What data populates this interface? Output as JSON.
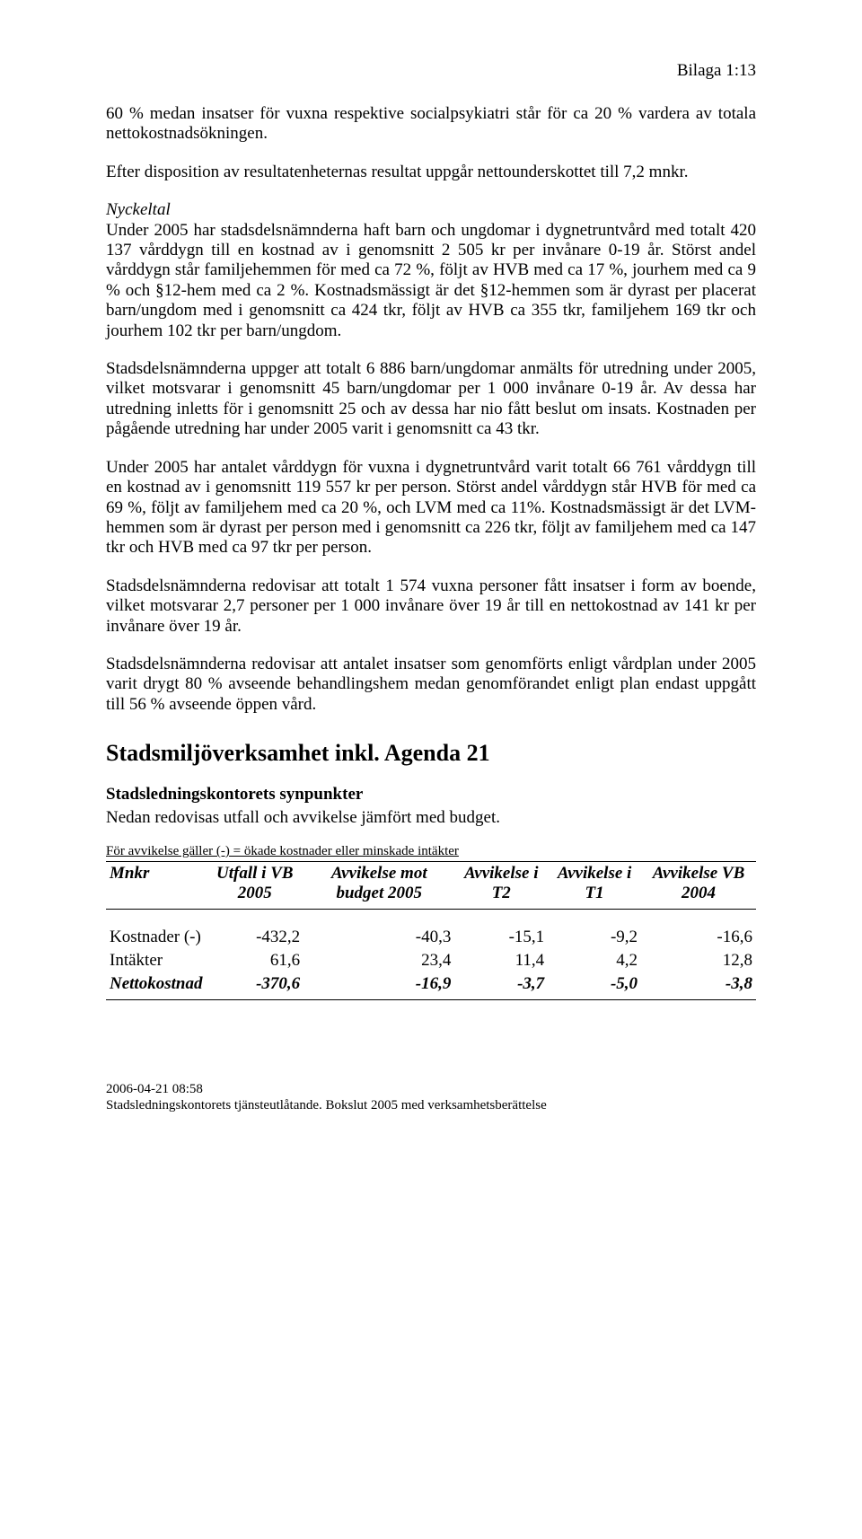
{
  "header": {
    "bilaga": "Bilaga 1:13"
  },
  "paragraphs": {
    "p1": "60 % medan insatser för vuxna respektive socialpsykiatri står för ca 20 % vardera av totala nettokostnadsökningen.",
    "p2": "Efter disposition av resultatenheternas resultat uppgår nettounderskottet till 7,2 mnkr.",
    "p3_label": "Nyckeltal",
    "p3": "Under 2005 har stadsdelsnämnderna haft barn och ungdomar i dygnetruntvård med totalt 420 137 vårddygn till en kostnad av i genomsnitt 2 505 kr per invånare 0-19 år. Störst andel vårddygn står familjehemmen för med ca 72 %, följt av HVB med ca 17 %, jourhem med ca 9 % och §12-hem med ca 2 %. Kostnadsmässigt är det §12-hemmen som är dyrast per placerat barn/ungdom med i genomsnitt ca 424 tkr, följt av HVB ca 355 tkr, familjehem 169 tkr och jourhem 102 tkr per barn/ungdom.",
    "p4": "Stadsdelsnämnderna uppger att totalt 6 886 barn/ungdomar anmälts för utredning under 2005, vilket motsvarar i genomsnitt 45 barn/ungdomar per 1 000 invånare 0-19 år. Av dessa har utredning inletts för i genomsnitt 25 och av dessa har nio fått beslut om insats. Kostnaden per pågående utredning har under 2005 varit i genomsnitt ca 43 tkr.",
    "p5": "Under 2005 har antalet vårddygn för vuxna i dygnetruntvård varit totalt  66 761 vårddygn till en kostnad av i genomsnitt 119 557 kr per person. Störst andel vårddygn står HVB för med ca 69 %, följt av familjehem med ca 20 %, och LVM med ca 11%. Kostnadsmässigt är det LVM-hemmen som är dyrast per person med i genomsnitt ca 226 tkr, följt av familjehem med ca 147 tkr och HVB med ca 97 tkr per person.",
    "p6": "Stadsdelsnämnderna redovisar att totalt 1 574 vuxna personer fått insatser i form av boende, vilket motsvarar 2,7 personer per 1 000 invånare över 19 år till en nettokostnad av 141 kr per invånare över 19 år.",
    "p7": "Stadsdelsnämnderna redovisar att antalet insatser som genomförts enligt vårdplan under 2005 varit drygt 80 % avseende behandlingshem medan genomförandet enligt plan endast uppgått till 56 % avseende öppen vård."
  },
  "section": {
    "heading": "Stadsmiljöverksamhet inkl. Agenda 21",
    "subheading": "Stadsledningskontorets synpunkter",
    "intro": "Nedan redovisas utfall och avvikelse jämfört med budget.",
    "table_caption": "För avvikelse gäller (-) = ökade kostnader eller minskade intäkter"
  },
  "table": {
    "columns": [
      "Mnkr",
      "Utfall i VB 2005",
      "Avvikelse mot budget 2005",
      "Avvikelse i T2",
      "Avvikelse i T1",
      "Avvikelse VB 2004"
    ],
    "rows": [
      {
        "label": "Kostnader (-)",
        "c1": "-432,2",
        "c2": "-40,3",
        "c3": "-15,1",
        "c4": "-9,2",
        "c5": "-16,6"
      },
      {
        "label": "Intäkter",
        "c1": "61,6",
        "c2": "23,4",
        "c3": "11,4",
        "c4": "4,2",
        "c5": "12,8"
      }
    ],
    "netto": {
      "label": "Nettokostnad",
      "c1": "-370,6",
      "c2": "-16,9",
      "c3": "-3,7",
      "c4": "-5,0",
      "c5": "-3,8"
    }
  },
  "footer": {
    "line1": "2006-04-21 08:58",
    "line2": "Stadsledningskontorets tjänsteutlåtande. Bokslut 2005 med verksamhetsberättelse"
  }
}
